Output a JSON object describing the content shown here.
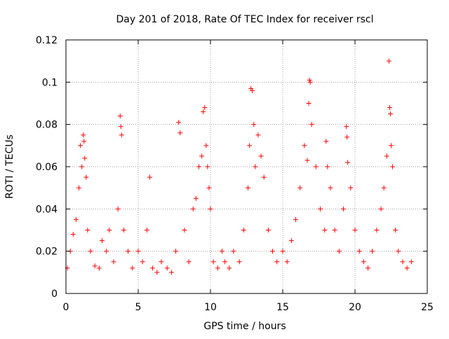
{
  "chart_data": {
    "type": "scatter",
    "title": "Day 201 of 2018, Rate Of TEC Index for receiver rscl",
    "xlabel": "GPS time / hours",
    "ylabel": "ROTI / TECUs",
    "xlim": [
      0,
      25
    ],
    "ylim": [
      0,
      0.12
    ],
    "x_ticks": [
      0,
      5,
      10,
      15,
      20,
      25
    ],
    "x_tick_labels": [
      "0",
      "5",
      "10",
      "15",
      "20",
      "25"
    ],
    "y_ticks": [
      0,
      0.02,
      0.04,
      0.06,
      0.08,
      0.1,
      0.12
    ],
    "y_tick_labels": [
      "0",
      "0.02",
      "0.04",
      "0.06",
      "0.08",
      "0.1",
      "0.12"
    ],
    "grid": true,
    "marker": "plus",
    "marker_color": "#ff0000",
    "series": [
      {
        "name": "ROTI",
        "x": [
          0.1,
          0.3,
          0.5,
          0.7,
          0.9,
          1.0,
          1.1,
          1.2,
          1.25,
          1.3,
          1.4,
          1.5,
          1.7,
          2.0,
          2.3,
          2.5,
          2.8,
          3.0,
          3.3,
          3.6,
          3.75,
          3.8,
          3.85,
          4.0,
          4.3,
          4.6,
          5.0,
          5.3,
          5.6,
          5.8,
          6.0,
          6.3,
          6.6,
          7.0,
          7.3,
          7.6,
          7.8,
          7.9,
          8.2,
          8.5,
          8.8,
          9.0,
          9.2,
          9.4,
          9.5,
          9.6,
          9.7,
          9.8,
          9.9,
          10.0,
          10.2,
          10.5,
          10.8,
          11.0,
          11.3,
          11.6,
          12.0,
          12.3,
          12.6,
          12.7,
          12.8,
          12.9,
          13.0,
          13.1,
          13.3,
          13.5,
          13.7,
          14.0,
          14.3,
          14.6,
          15.0,
          15.3,
          15.6,
          15.9,
          16.2,
          16.5,
          16.7,
          16.8,
          16.85,
          16.9,
          17.0,
          17.3,
          17.6,
          17.9,
          18.0,
          18.1,
          18.3,
          18.6,
          18.9,
          19.2,
          19.4,
          19.45,
          19.5,
          19.7,
          20.0,
          20.3,
          20.6,
          20.9,
          21.2,
          21.5,
          21.8,
          22.0,
          22.2,
          22.35,
          22.4,
          22.45,
          22.5,
          22.6,
          22.8,
          23.0,
          23.3,
          23.6,
          23.9
        ],
        "y": [
          0.012,
          0.02,
          0.028,
          0.035,
          0.05,
          0.07,
          0.06,
          0.075,
          0.072,
          0.064,
          0.055,
          0.03,
          0.02,
          0.013,
          0.012,
          0.025,
          0.02,
          0.03,
          0.015,
          0.04,
          0.084,
          0.079,
          0.075,
          0.03,
          0.02,
          0.012,
          0.02,
          0.015,
          0.03,
          0.055,
          0.012,
          0.01,
          0.015,
          0.012,
          0.01,
          0.02,
          0.081,
          0.076,
          0.03,
          0.015,
          0.04,
          0.045,
          0.06,
          0.065,
          0.086,
          0.088,
          0.07,
          0.06,
          0.05,
          0.04,
          0.015,
          0.012,
          0.02,
          0.015,
          0.012,
          0.02,
          0.015,
          0.03,
          0.05,
          0.07,
          0.097,
          0.096,
          0.08,
          0.06,
          0.075,
          0.065,
          0.055,
          0.03,
          0.02,
          0.015,
          0.02,
          0.015,
          0.025,
          0.035,
          0.05,
          0.07,
          0.063,
          0.09,
          0.101,
          0.1,
          0.08,
          0.06,
          0.04,
          0.03,
          0.072,
          0.06,
          0.05,
          0.03,
          0.02,
          0.04,
          0.079,
          0.074,
          0.062,
          0.05,
          0.03,
          0.02,
          0.015,
          0.012,
          0.02,
          0.03,
          0.04,
          0.05,
          0.065,
          0.11,
          0.088,
          0.085,
          0.07,
          0.06,
          0.03,
          0.02,
          0.015,
          0.012,
          0.015
        ]
      }
    ]
  }
}
